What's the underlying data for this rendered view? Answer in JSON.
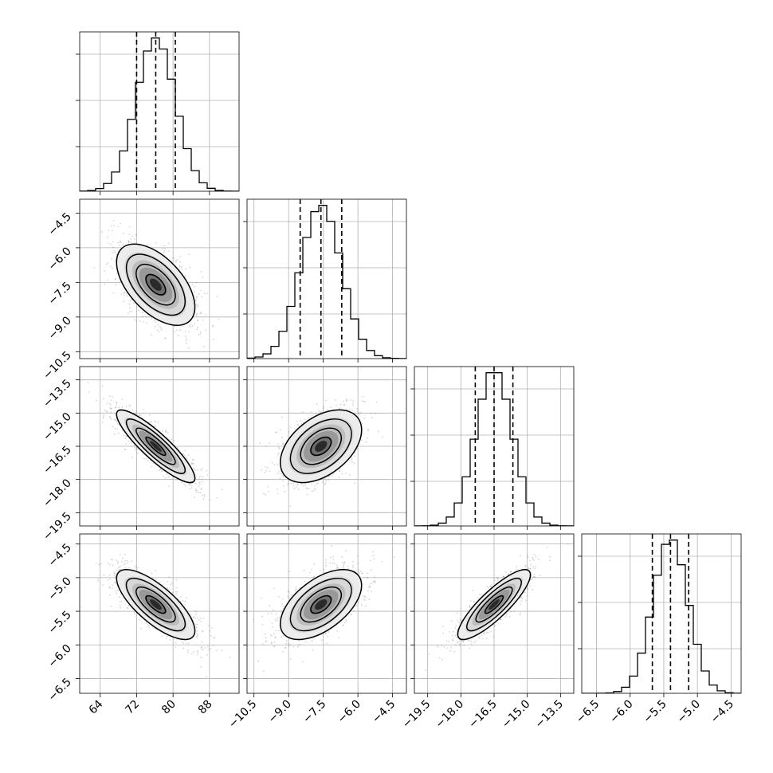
{
  "chart_data": {
    "type": "corner",
    "grid": true,
    "parameters": [
      {
        "ticks": [
          64,
          72,
          80,
          88
        ],
        "tick_labels": [
          "64",
          "72",
          "80",
          "88"
        ],
        "range": [
          59.5,
          94.5
        ],
        "mean": 76.2,
        "sigma": 4.3,
        "quantiles": [
          72.0,
          76.2,
          80.5
        ]
      },
      {
        "ticks": [
          -10.5,
          -9.0,
          -7.5,
          -6.0,
          -4.5
        ],
        "tick_labels": [
          "−10.5",
          "−9.0",
          "−7.5",
          "−6.0",
          "−4.5"
        ],
        "range": [
          -10.8,
          -3.9
        ],
        "mean": -7.6,
        "sigma": 0.88,
        "quantiles": [
          -8.5,
          -7.6,
          -6.7
        ]
      },
      {
        "ticks": [
          -19.5,
          -18.0,
          -16.5,
          -15.0,
          -13.5
        ],
        "tick_labels": [
          "−19.5",
          "−18.0",
          "−16.5",
          "−15.0",
          "−13.5"
        ],
        "range": [
          -20.1,
          -12.9
        ],
        "mean": -16.5,
        "sigma": 0.82,
        "quantiles": [
          -17.35,
          -16.5,
          -15.65
        ]
      },
      {
        "ticks": [
          -6.5,
          -6.0,
          -5.5,
          -5.0,
          -4.5
        ],
        "tick_labels": [
          "−6.5",
          "−6.0",
          "−5.5",
          "−5.0",
          "−4.5"
        ],
        "range": [
          -6.72,
          -4.35
        ],
        "mean": -5.4,
        "sigma": 0.26,
        "quantiles": [
          -5.67,
          -5.4,
          -5.13
        ]
      }
    ],
    "correlations": {
      "1_0": -0.55,
      "2_0": -0.88,
      "2_1": 0.45,
      "3_0": -0.75,
      "3_1": 0.55,
      "3_2": 0.85
    },
    "contour_levels_sigma": [
      0.5,
      1.0,
      1.5,
      2.0
    ]
  }
}
